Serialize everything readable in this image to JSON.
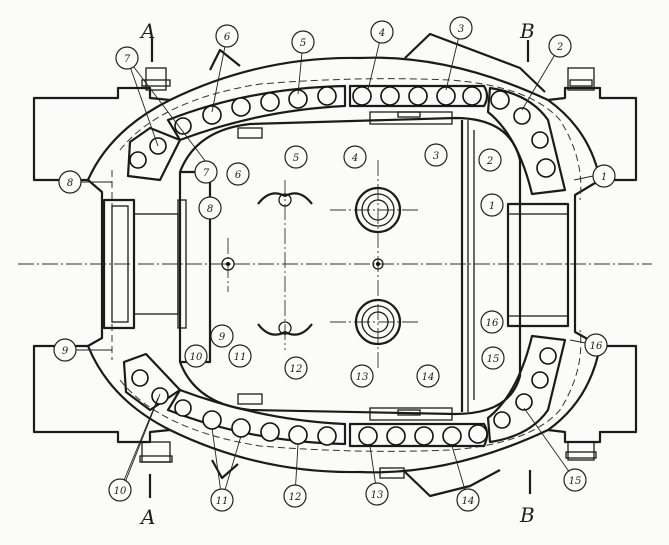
{
  "section_labels": {
    "a_top": "A",
    "a_bottom": "A",
    "b_top": "B",
    "b_bottom": "B"
  },
  "callouts": {
    "c1a": "1",
    "c1b": "1",
    "c2a": "2",
    "c2b": "2",
    "c3a": "3",
    "c3b": "3",
    "c4a": "4",
    "c4b": "4",
    "c5a": "5",
    "c5b": "5",
    "c6a": "6",
    "c6b": "6",
    "c7a": "7",
    "c7b": "7",
    "c8a": "8",
    "c8b": "8",
    "c9a": "9",
    "c9b": "9",
    "c10a": "10",
    "c10b": "10",
    "c11a": "11",
    "c11b": "11",
    "c12a": "12",
    "c12b": "12",
    "c13a": "13",
    "c13b": "13",
    "c14a": "14",
    "c14b": "14",
    "c15a": "15",
    "c15b": "15",
    "c16a": "16",
    "c16b": "16"
  }
}
